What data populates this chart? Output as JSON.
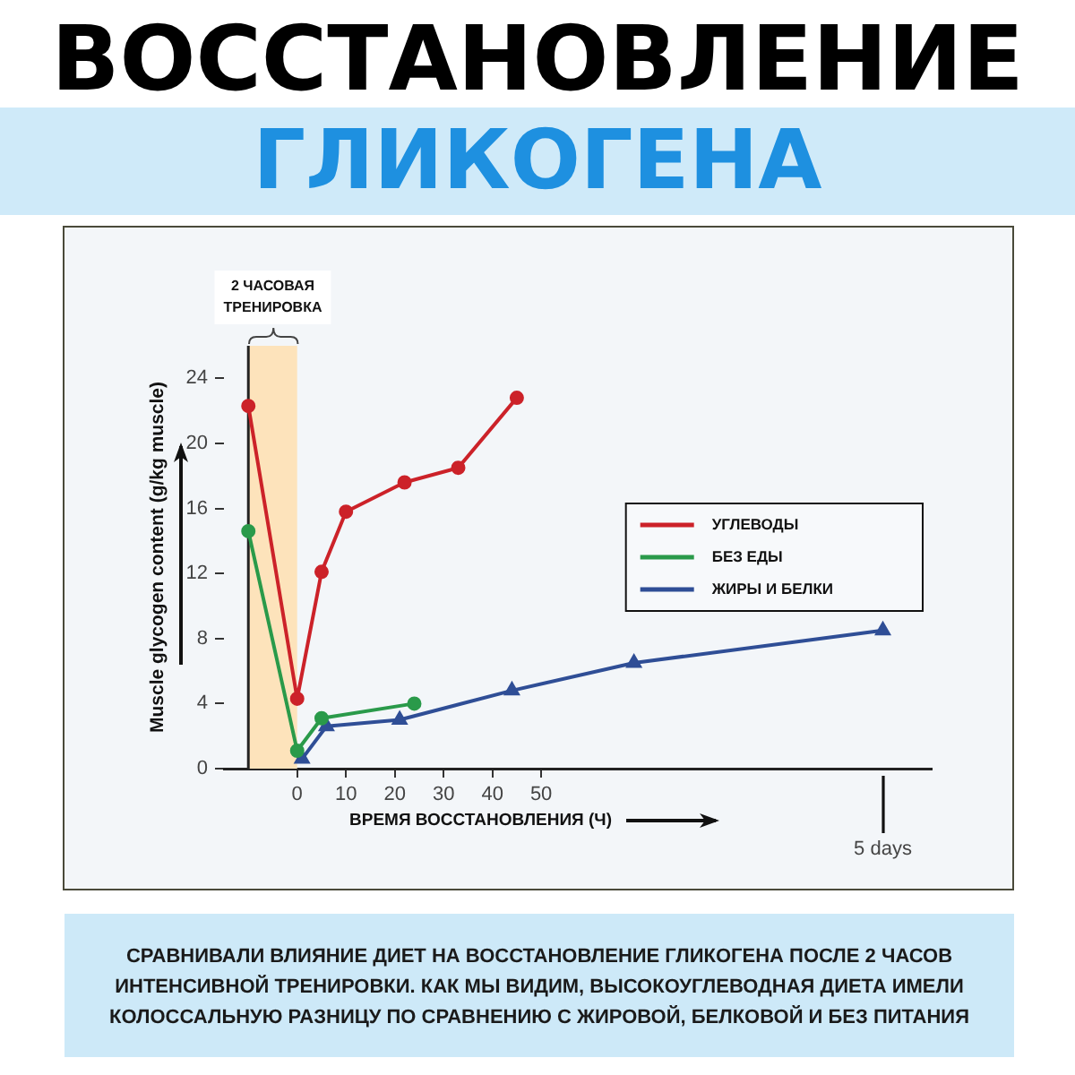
{
  "chart_data": {
    "type": "line",
    "title": "ВОССТАНОВЛЕНИЕ",
    "subtitle": "ГЛИКОГЕНА",
    "xlabel": "ВРЕМЯ ВОССТАНОВЛЕНИЯ (Ч)",
    "ylabel": "Muscle glycogen content (g/kg muscle)",
    "series": [
      {
        "name": "УГЛЕВОДЫ",
        "color": "#cc2229",
        "marker": "circle",
        "x": [
          -10,
          0,
          5,
          10,
          22,
          33,
          45
        ],
        "values": [
          22.3,
          4.3,
          12.1,
          15.8,
          17.6,
          18.5,
          22.8
        ]
      },
      {
        "name": "БЕЗ ЕДЫ",
        "color": "#2a9a4a",
        "marker": "circle",
        "x": [
          -10,
          0,
          5,
          24
        ],
        "values": [
          14.6,
          1.1,
          3.1,
          4.0
        ]
      },
      {
        "name": "ЖИРЫ И БЕЛКИ",
        "color": "#2f4e96",
        "marker": "triangle",
        "x": [
          1,
          6,
          21,
          44,
          69,
          120
        ],
        "values": [
          0.6,
          2.6,
          3.0,
          4.8,
          6.5,
          8.5
        ]
      }
    ],
    "xlim": [
      -15,
      130
    ],
    "xticks": [
      0,
      10,
      20,
      30,
      40,
      50
    ],
    "ylim": [
      0,
      26
    ],
    "yticks": [
      0,
      4,
      8,
      12,
      16,
      20,
      24
    ],
    "bands": [
      {
        "axis": "x",
        "from": -10,
        "to": 0,
        "label": "2 ЧАСОВАЯ ТРЕНИРОВКА",
        "color": "#fde3bb"
      }
    ],
    "legend": "right",
    "annotations": [
      {
        "text": "5 days",
        "x": 120
      },
      "СРАВНИВАЛИ ВЛИЯНИЕ ДИЕТ НА ВОССТАНОВЛЕНИЕ ГЛИКОГЕНА ПОСЛЕ 2 ЧАСОВ ИНТЕНСИВНОЙ ТРЕНИРОВКИ. КАК МЫ ВИДИМ, ВЫСОКОУГЛЕВОДНАЯ ДИЕТА ИМЕЛИ КОЛОССАЛЬНУЮ РАЗНИЦУ ПО СРАВНЕНИЮ С ЖИРОВОЙ, БЕЛКОВОЙ И БЕЗ ПИТАНИЯ"
    ]
  }
}
